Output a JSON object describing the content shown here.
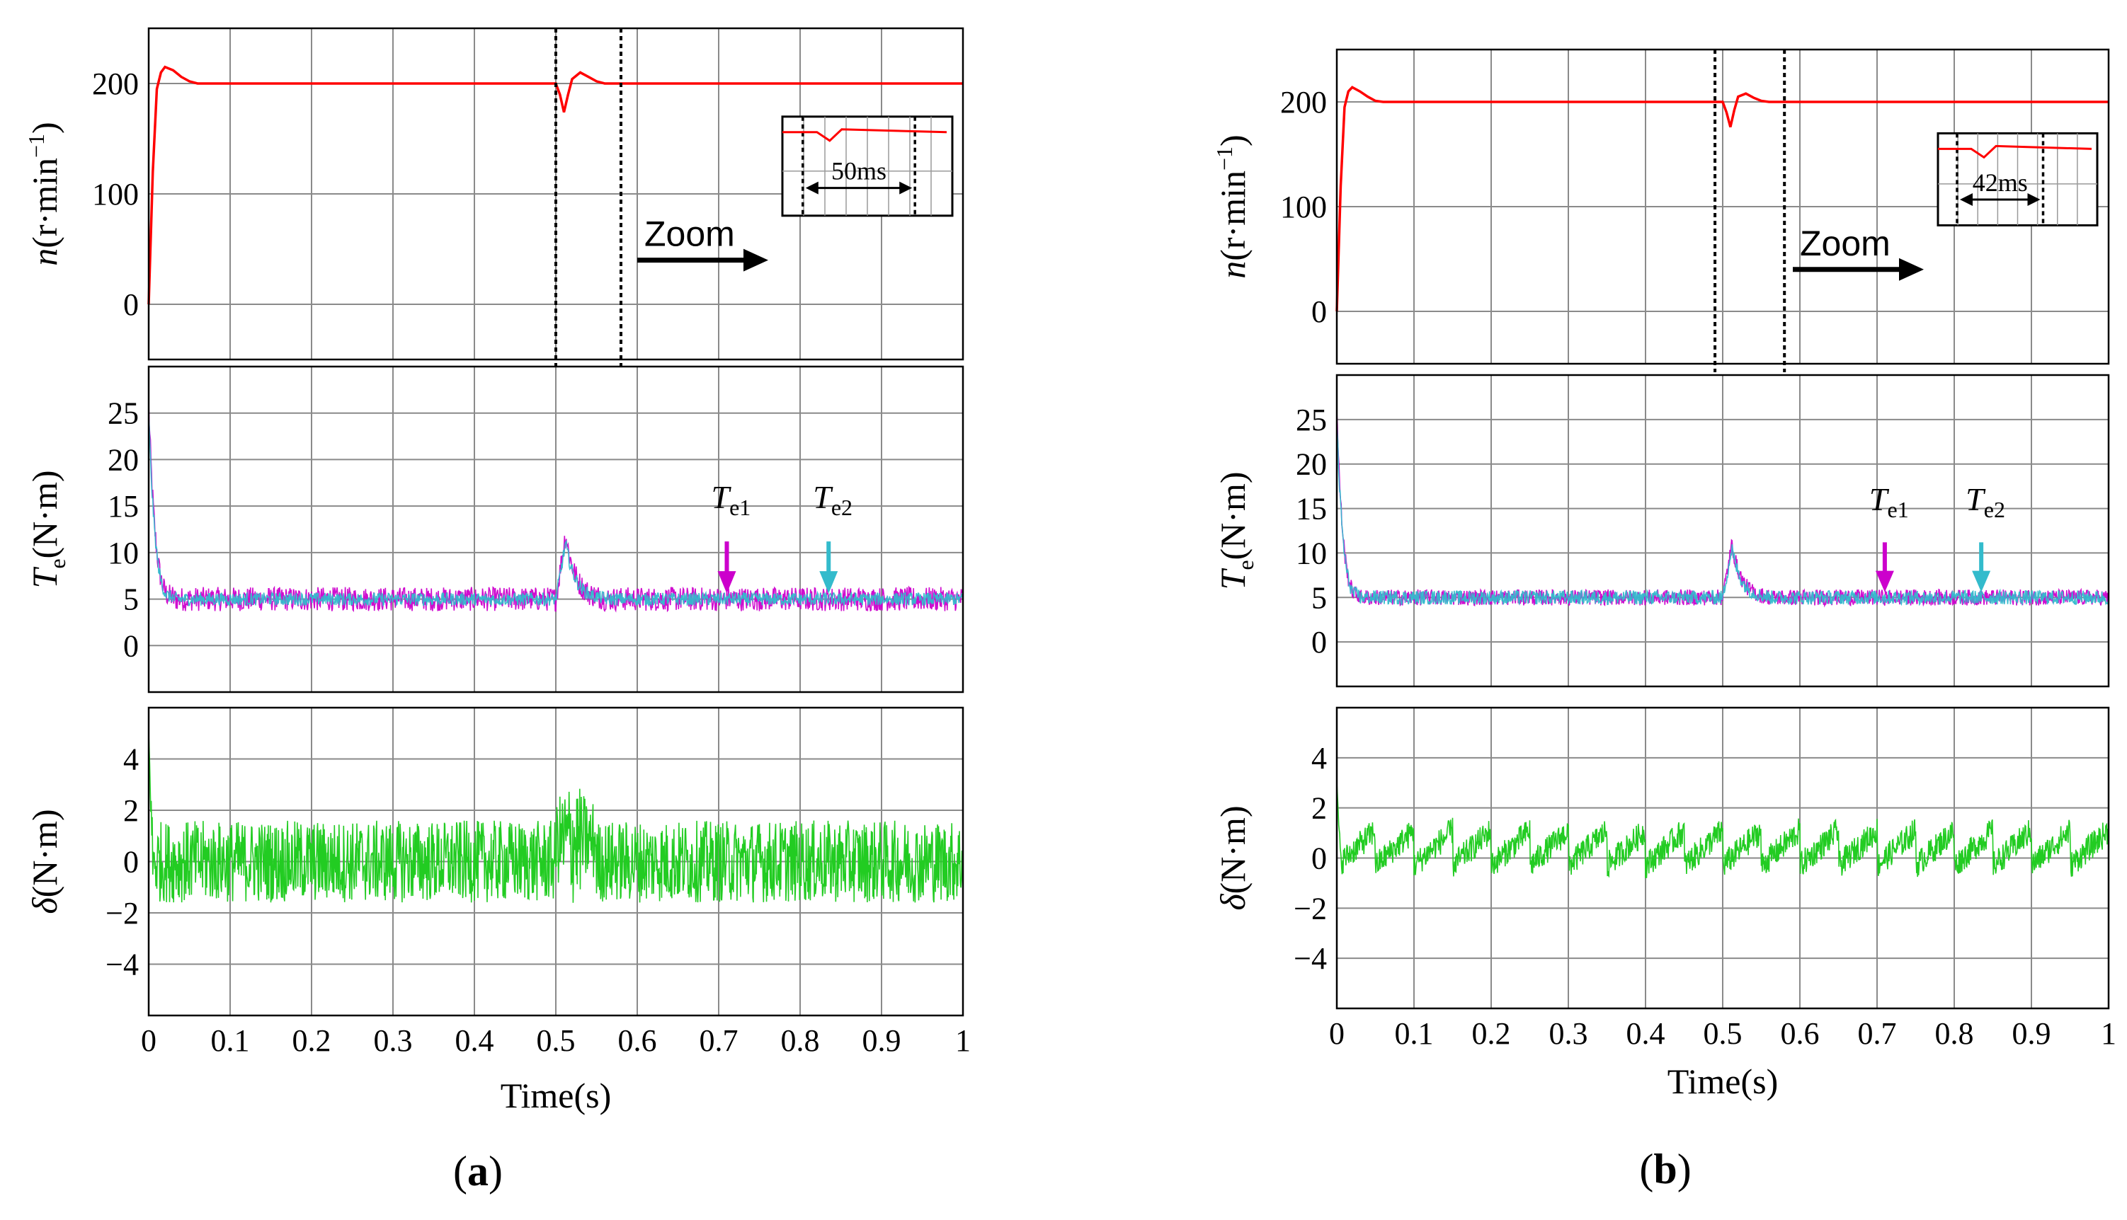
{
  "chart_data": [
    {
      "panel": "(a)",
      "panel_letter": "a",
      "xlabel": "Time(s)",
      "x_ticks": [
        "0",
        "0.1",
        "0.2",
        "0.3",
        "0.4",
        "0.5",
        "0.6",
        "0.7",
        "0.8",
        "0.9",
        "1"
      ],
      "xlim": [
        0,
        1
      ],
      "subplots": [
        {
          "type": "line",
          "ylabel": "n(r·min⁻¹)",
          "ylim": [
            -50,
            250
          ],
          "y_ticks": [
            0,
            100,
            200
          ],
          "markers": [
            0.5,
            0.58
          ],
          "series": [
            {
              "name": "speed",
              "color": "#ff0000",
              "x": [
                0,
                0.005,
                0.01,
                0.015,
                0.02,
                0.03,
                0.04,
                0.05,
                0.06,
                0.08,
                0.1,
                0.5,
                0.505,
                0.51,
                0.515,
                0.52,
                0.53,
                0.54,
                0.55,
                0.56,
                0.58,
                1.0
              ],
              "y": [
                0,
                120,
                195,
                210,
                215,
                212,
                206,
                202,
                200,
                200,
                200,
                200,
                190,
                174,
                190,
                204,
                210,
                206,
                202,
                200,
                200,
                200
              ]
            }
          ],
          "zoom": {
            "label": "Zoom",
            "duration": "50ms"
          }
        },
        {
          "type": "line",
          "ylabel": "Te(N·m)",
          "ylim": [
            -5,
            30
          ],
          "y_ticks": [
            0,
            5,
            10,
            15,
            20,
            25
          ],
          "series": [
            {
              "name": "Te1",
              "color": "#cc00cc",
              "base": 5.0,
              "amplitude": 1.3,
              "startup_peak": 26,
              "step_peak": 12
            },
            {
              "name": "Te2",
              "color": "#33bbcc",
              "base": 5.0,
              "amplitude": 0.7,
              "startup_peak": 25,
              "step_peak": 11
            }
          ],
          "annotations": [
            {
              "main": "T",
              "sub": "e1",
              "x": 0.71,
              "color": "#cc00cc"
            },
            {
              "main": "T",
              "sub": "e2",
              "x": 0.835,
              "color": "#33bbcc"
            }
          ]
        },
        {
          "type": "line",
          "ylabel": "δ(N·m)",
          "ylim": [
            -6,
            6
          ],
          "y_ticks": [
            -4,
            -2,
            0,
            2,
            4
          ],
          "series": [
            {
              "name": "delta",
              "color": "#22cc22",
              "pattern": "noise",
              "amplitude": 1.6,
              "step_amplitude": 2.6,
              "startup_peak": 5
            }
          ]
        }
      ]
    },
    {
      "panel": "(b)",
      "panel_letter": "b",
      "xlabel": "Time(s)",
      "x_ticks": [
        "0",
        "0.1",
        "0.2",
        "0.3",
        "0.4",
        "0.5",
        "0.6",
        "0.7",
        "0.8",
        "0.9",
        "1"
      ],
      "xlim": [
        0,
        1
      ],
      "subplots": [
        {
          "type": "line",
          "ylabel": "n(r·min⁻¹)",
          "ylim": [
            -50,
            250
          ],
          "y_ticks": [
            0,
            100,
            200
          ],
          "markers": [
            0.49,
            0.58
          ],
          "series": [
            {
              "name": "speed",
              "color": "#ff0000",
              "x": [
                0,
                0.005,
                0.01,
                0.015,
                0.02,
                0.03,
                0.04,
                0.05,
                0.06,
                0.08,
                0.1,
                0.5,
                0.505,
                0.51,
                0.515,
                0.52,
                0.53,
                0.54,
                0.55,
                0.56,
                0.58,
                1.0
              ],
              "y": [
                0,
                120,
                195,
                210,
                214,
                210,
                205,
                201,
                200,
                200,
                200,
                200,
                190,
                176,
                192,
                205,
                208,
                204,
                201,
                200,
                200,
                200
              ]
            }
          ],
          "zoom": {
            "label": "Zoom",
            "duration": "42ms"
          }
        },
        {
          "type": "line",
          "ylabel": "Te(N·m)",
          "ylim": [
            -5,
            30
          ],
          "y_ticks": [
            0,
            5,
            10,
            15,
            20,
            25
          ],
          "series": [
            {
              "name": "Te1",
              "color": "#cc00cc",
              "base": 5.0,
              "amplitude": 0.9,
              "startup_peak": 26,
              "step_peak": 11
            },
            {
              "name": "Te2",
              "color": "#33bbcc",
              "base": 5.0,
              "amplitude": 0.8,
              "startup_peak": 25,
              "step_peak": 10.5
            }
          ],
          "annotations": [
            {
              "main": "T",
              "sub": "e1",
              "x": 0.71,
              "color": "#cc00cc"
            },
            {
              "main": "T",
              "sub": "e2",
              "x": 0.835,
              "color": "#33bbcc"
            }
          ]
        },
        {
          "type": "line",
          "ylabel": "δ(N·m)",
          "ylim": [
            -6,
            6
          ],
          "y_ticks": [
            -4,
            -2,
            0,
            2,
            4
          ],
          "series": [
            {
              "name": "delta",
              "color": "#22cc22",
              "pattern": "sawtooth",
              "amplitude": 0.9,
              "sawtooth_count": 20,
              "startup_peak": 3
            }
          ]
        }
      ]
    }
  ]
}
